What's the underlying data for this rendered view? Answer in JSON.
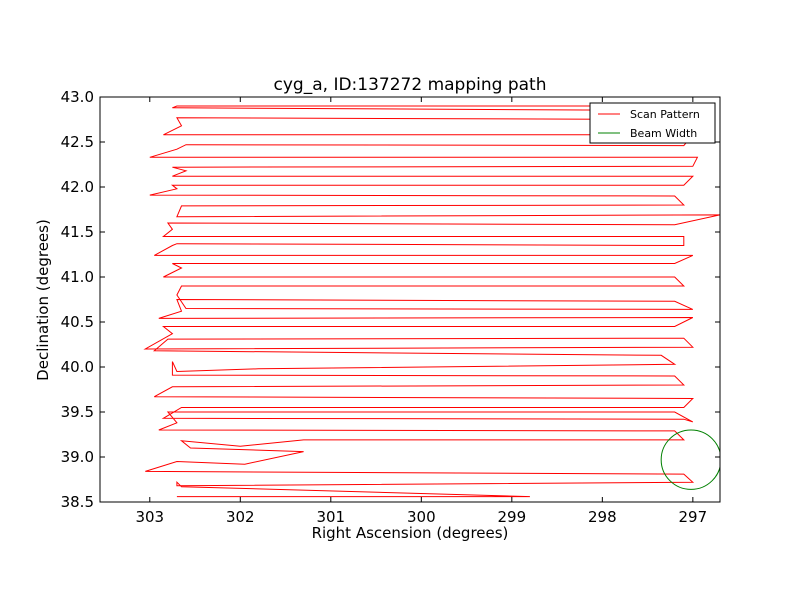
{
  "chart_data": {
    "type": "line",
    "title": "cyg_a, ID:137272 mapping path",
    "xlabel": "Right Ascension (degrees)",
    "ylabel": "Declination (degrees)",
    "xlim": [
      303.55,
      296.7
    ],
    "ylim": [
      38.5,
      43.0
    ],
    "x_inverted": true,
    "xticks": [
      303,
      302,
      301,
      300,
      299,
      298,
      297
    ],
    "xtick_labels": [
      "303",
      "302",
      "301",
      "300",
      "299",
      "298",
      "297"
    ],
    "yticks": [
      38.5,
      39.0,
      39.5,
      40.0,
      40.5,
      41.0,
      41.5,
      42.0,
      42.5,
      43.0
    ],
    "ytick_labels": [
      "38.5",
      "39.0",
      "39.5",
      "40.0",
      "40.5",
      "41.0",
      "41.5",
      "42.0",
      "42.5",
      "43.0"
    ],
    "grid": false,
    "legend_position": "top-right",
    "series": [
      {
        "name": "Scan Pattern",
        "color": "#ff0000",
        "points": [
          [
            302.7,
            38.56
          ],
          [
            298.8,
            38.56
          ],
          [
            302.65,
            38.67
          ],
          [
            302.7,
            38.72
          ],
          [
            302.7,
            38.68
          ],
          [
            297.0,
            38.72
          ],
          [
            297.1,
            38.81
          ],
          [
            303.05,
            38.84
          ],
          [
            302.7,
            38.95
          ],
          [
            301.95,
            38.92
          ],
          [
            301.3,
            39.06
          ],
          [
            302.55,
            39.1
          ],
          [
            302.65,
            39.18
          ],
          [
            302.0,
            39.12
          ],
          [
            301.3,
            39.19
          ],
          [
            297.1,
            39.19
          ],
          [
            297.2,
            39.29
          ],
          [
            302.9,
            39.3
          ],
          [
            302.7,
            39.38
          ],
          [
            302.8,
            39.5
          ],
          [
            297.2,
            39.5
          ],
          [
            297.0,
            39.39
          ],
          [
            297.1,
            39.42
          ],
          [
            302.85,
            39.43
          ],
          [
            302.65,
            39.55
          ],
          [
            297.1,
            39.55
          ],
          [
            297.0,
            39.65
          ],
          [
            302.95,
            39.67
          ],
          [
            302.75,
            39.78
          ],
          [
            297.1,
            39.8
          ],
          [
            297.2,
            39.9
          ],
          [
            302.75,
            39.91
          ],
          [
            302.75,
            39.96
          ],
          [
            302.75,
            40.06
          ],
          [
            302.7,
            39.95
          ],
          [
            301.8,
            39.98
          ],
          [
            297.2,
            40.03
          ],
          [
            297.35,
            40.13
          ],
          [
            302.95,
            40.18
          ],
          [
            302.8,
            40.31
          ],
          [
            297.1,
            40.32
          ],
          [
            297.0,
            40.22
          ],
          [
            303.05,
            40.2
          ],
          [
            302.75,
            40.37
          ],
          [
            302.85,
            40.45
          ],
          [
            297.2,
            40.45
          ],
          [
            297.0,
            40.55
          ],
          [
            302.9,
            40.54
          ],
          [
            302.65,
            40.62
          ],
          [
            302.7,
            40.75
          ],
          [
            297.2,
            40.73
          ],
          [
            297.0,
            40.64
          ],
          [
            302.6,
            40.65
          ],
          [
            302.7,
            40.8
          ],
          [
            302.65,
            40.9
          ],
          [
            297.1,
            40.9
          ],
          [
            297.2,
            41.0
          ],
          [
            302.85,
            41.0
          ],
          [
            302.65,
            41.1
          ],
          [
            302.75,
            41.15
          ],
          [
            297.2,
            41.15
          ],
          [
            297.0,
            41.24
          ],
          [
            302.95,
            41.24
          ],
          [
            302.75,
            41.35
          ],
          [
            302.7,
            41.37
          ],
          [
            297.1,
            41.35
          ],
          [
            297.1,
            41.45
          ],
          [
            302.85,
            41.45
          ],
          [
            302.75,
            41.53
          ],
          [
            302.8,
            41.6
          ],
          [
            297.2,
            41.58
          ],
          [
            296.7,
            41.69
          ],
          [
            302.7,
            41.67
          ],
          [
            302.65,
            41.79
          ],
          [
            297.1,
            41.8
          ],
          [
            297.2,
            41.9
          ],
          [
            303.0,
            41.91
          ],
          [
            302.7,
            41.98
          ],
          [
            302.75,
            42.02
          ],
          [
            297.1,
            42.02
          ],
          [
            297.0,
            42.12
          ],
          [
            302.75,
            42.12
          ],
          [
            302.6,
            42.18
          ],
          [
            302.75,
            42.22
          ],
          [
            297.0,
            42.23
          ],
          [
            296.95,
            42.33
          ],
          [
            303.0,
            42.33
          ],
          [
            302.7,
            42.42
          ],
          [
            302.6,
            42.47
          ],
          [
            297.1,
            42.46
          ],
          [
            297.0,
            42.58
          ],
          [
            302.85,
            42.58
          ],
          [
            302.65,
            42.68
          ],
          [
            302.7,
            42.77
          ],
          [
            297.2,
            42.75
          ],
          [
            297.1,
            42.85
          ],
          [
            302.75,
            42.88
          ],
          [
            302.7,
            42.9
          ],
          [
            297.0,
            42.9
          ]
        ]
      },
      {
        "name": "Beam Width",
        "color": "#008000",
        "shape": "circle",
        "center": [
          297.02,
          38.97
        ],
        "radius_deg": 0.33
      }
    ],
    "legend": [
      "Scan Pattern",
      "Beam Width"
    ]
  }
}
